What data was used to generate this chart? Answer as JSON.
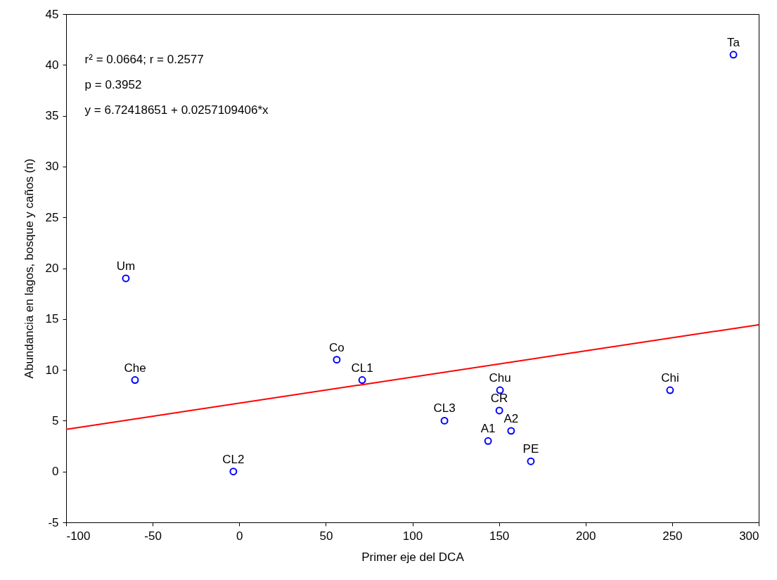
{
  "chart_data": {
    "type": "scatter",
    "xlabel": "Primer eje del DCA",
    "ylabel": "Abundancia en lagos, bosque y caños (n)",
    "xlim": [
      -100,
      300
    ],
    "xticks": [
      -100,
      -50,
      0,
      50,
      100,
      150,
      200,
      250,
      300
    ],
    "ylim": [
      -5,
      45
    ],
    "yticks": [
      -5,
      0,
      5,
      10,
      15,
      20,
      25,
      30,
      35,
      40,
      45
    ],
    "grid": false,
    "marker": "circle",
    "series": [
      {
        "color": "#0000ff",
        "x": [
          285.4,
          -65.5,
          -60.2,
          -3.4,
          56.3,
          71,
          118.5,
          143.7,
          150.6,
          150.2,
          157,
          168.4,
          248.8
        ],
        "values": [
          41,
          19,
          9,
          0,
          11,
          9,
          5,
          3,
          8,
          6,
          4,
          1,
          8
        ]
      },
      {
        "type": "line",
        "marker": "none",
        "color": "#ff0000",
        "x": [
          -100,
          300
        ],
        "values": [
          4.15,
          14.44
        ]
      }
    ],
    "annotations": [
      "r² = 0.0664;  r = 0.2577",
      "p = 0.3952",
      "y = 6.72418651 + 0.0257109406*x",
      {
        "text": "Ta",
        "x": 285.4,
        "y": 41
      },
      {
        "text": "Um",
        "x": -65.5,
        "y": 19
      },
      {
        "text": "Che",
        "x": -60.2,
        "y": 9
      },
      {
        "text": "CL2",
        "x": -3.4,
        "y": 0
      },
      {
        "text": "Co",
        "x": 56.3,
        "y": 11
      },
      {
        "text": "CL1",
        "x": 71,
        "y": 9
      },
      {
        "text": "CL3",
        "x": 118.5,
        "y": 5
      },
      {
        "text": "A1",
        "x": 143.7,
        "y": 3
      },
      {
        "text": "Chu",
        "x": 150.6,
        "y": 8
      },
      {
        "text": "CR",
        "x": 150.2,
        "y": 6
      },
      {
        "text": "A2",
        "x": 157,
        "y": 4
      },
      {
        "text": "PE",
        "x": 168.4,
        "y": 1
      },
      {
        "text": "Chi",
        "x": 248.8,
        "y": 8
      }
    ]
  }
}
